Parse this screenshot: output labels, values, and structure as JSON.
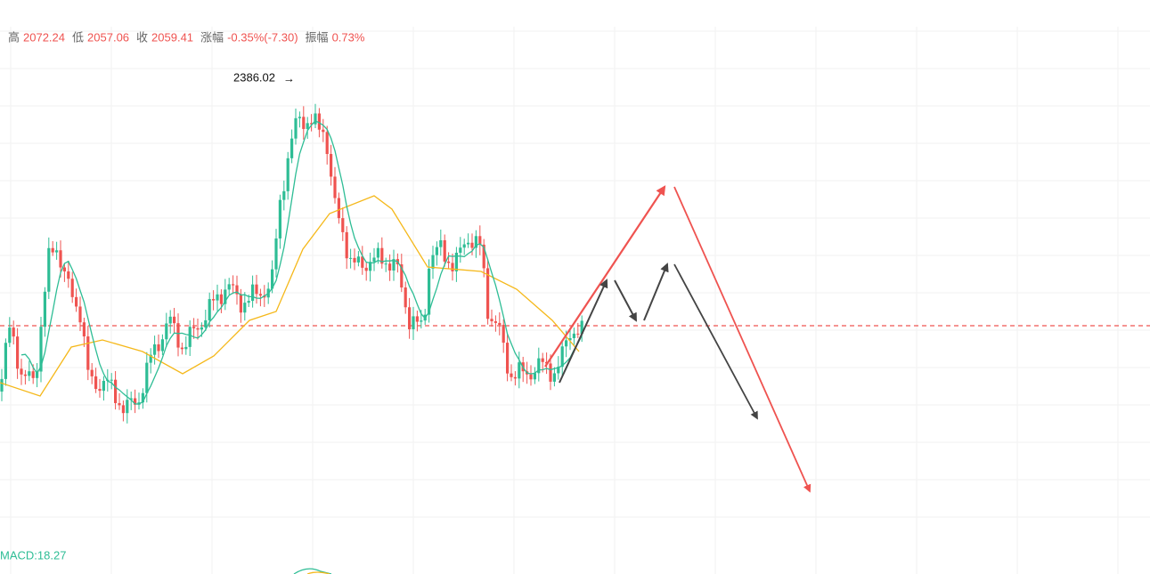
{
  "header": {
    "items": [
      {
        "label": "高",
        "value": "2072.24"
      },
      {
        "label": "低",
        "value": "2057.06"
      },
      {
        "label": "收",
        "value": "2059.41"
      },
      {
        "label": "涨幅",
        "value": "-0.35%(-7.30)"
      },
      {
        "label": "振幅",
        "value": "0.73%"
      }
    ]
  },
  "annotation": "2386.02",
  "macd": "MACD:18.27"
}
